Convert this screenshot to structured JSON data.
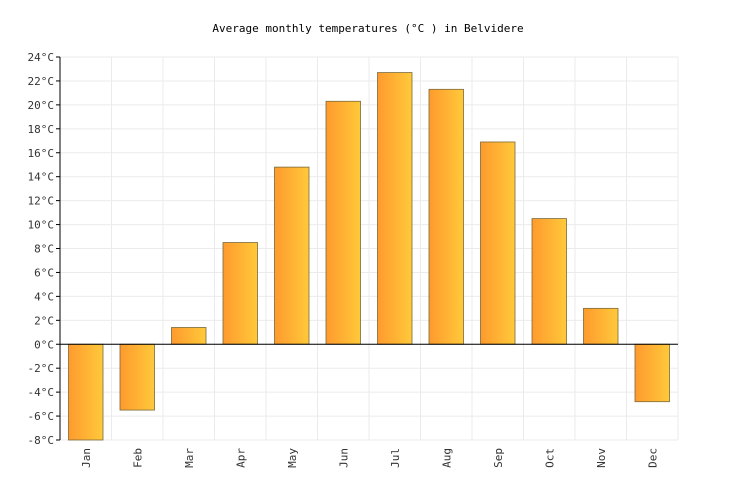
{
  "chart_data": {
    "type": "bar",
    "title": "Average monthly temperatures (°C ) in Belvidere",
    "categories": [
      "Jan",
      "Feb",
      "Mar",
      "Apr",
      "May",
      "Jun",
      "Jul",
      "Aug",
      "Sep",
      "Oct",
      "Nov",
      "Dec"
    ],
    "values": [
      -8.0,
      -5.5,
      1.4,
      8.5,
      14.8,
      20.3,
      22.7,
      21.3,
      16.9,
      10.5,
      3.0,
      -4.8
    ],
    "ylim": [
      -8,
      24
    ],
    "yticks": [
      24,
      22,
      20,
      18,
      16,
      14,
      12,
      10,
      8,
      6,
      4,
      2,
      0,
      -2,
      -4,
      -6,
      -8
    ],
    "ytick_suffix": "°C",
    "xlabel": "",
    "ylabel": "",
    "grid": true,
    "colors": {
      "bar_start": "#FF9A2E",
      "bar_end": "#FFC93A",
      "bar_border": "#7A6A3A",
      "grid": "#EBEBEB",
      "axis": "#000000",
      "zero_line": "#000000"
    }
  }
}
